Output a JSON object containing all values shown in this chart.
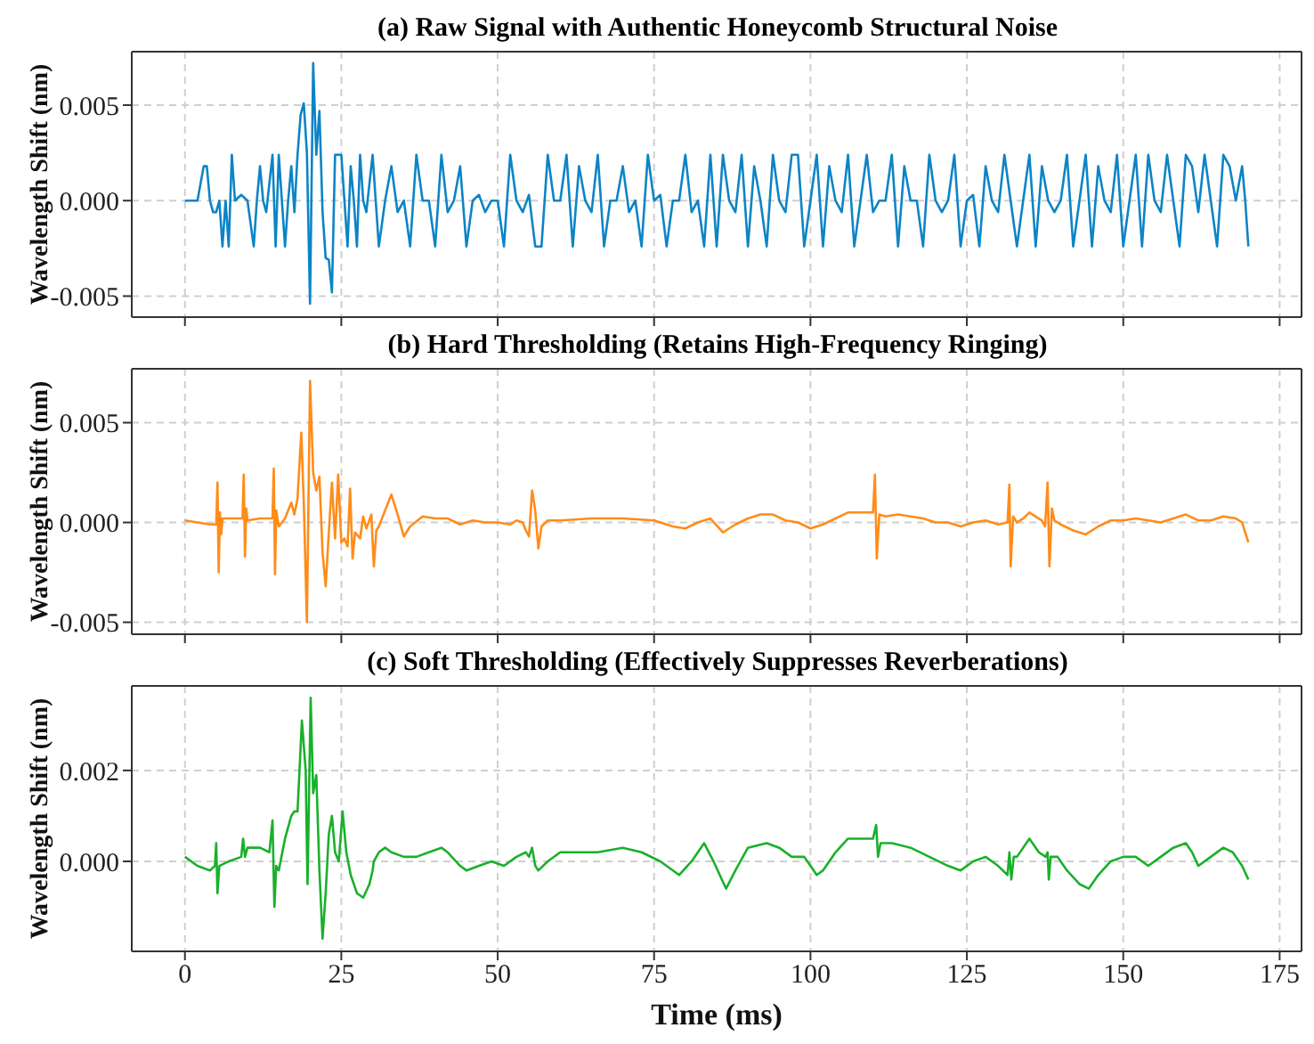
{
  "chart_data": [
    {
      "type": "line",
      "title": "(a) Raw Signal with Authentic Honeycomb Structural Noise",
      "ylabel": "Wavelength Shift (nm)",
      "color": "#0c84c6",
      "grid": true,
      "tick_labels": "y",
      "xlim": [
        -8.5,
        178.5
      ],
      "xticks": [
        0,
        25,
        50,
        75,
        100,
        125,
        150,
        175
      ],
      "ylim": [
        -0.0061,
        0.0078
      ],
      "yticks": [
        {
          "value": -0.005,
          "label": "-0.005"
        },
        {
          "value": 0,
          "label": "0.000"
        },
        {
          "value": 0.005,
          "label": "0.005"
        }
      ],
      "x": [
        0,
        2,
        3,
        3.5,
        4,
        4.5,
        5,
        5.5,
        6,
        6.5,
        7,
        7.5,
        8,
        9,
        10,
        11,
        11.5,
        12,
        12.5,
        13,
        14,
        14.5,
        15,
        15.5,
        16,
        16.5,
        17,
        17.5,
        18,
        18.5,
        19,
        19.5,
        20,
        20.5,
        21,
        21.5,
        22,
        22.5,
        23,
        23.5,
        24,
        25,
        25.5,
        26,
        26.5,
        27,
        27.5,
        28,
        28.5,
        29,
        30,
        31,
        32,
        33,
        34,
        35,
        36,
        37,
        38,
        39,
        40,
        41,
        42,
        43,
        44,
        45,
        46,
        47,
        48,
        49,
        50,
        51,
        52,
        53,
        54,
        55,
        56,
        57,
        58,
        59,
        60,
        61,
        62,
        63,
        64,
        65,
        66,
        67,
        68,
        69,
        70,
        71,
        72,
        73,
        74,
        75,
        76,
        77,
        78,
        79,
        80,
        81,
        82,
        83,
        84,
        85,
        86,
        87,
        88,
        89,
        90,
        91,
        92,
        93,
        94,
        95,
        96,
        97,
        98,
        99,
        100,
        101,
        102,
        103,
        104,
        105,
        106,
        107,
        108,
        109,
        110,
        111,
        112,
        113,
        114,
        115,
        116,
        117,
        118,
        119,
        120,
        121,
        122,
        123,
        124,
        125,
        126,
        127,
        128,
        129,
        130,
        131,
        132,
        133,
        134,
        135,
        136,
        137,
        138,
        139,
        140,
        141,
        142,
        143,
        144,
        145,
        146,
        147,
        148,
        149,
        150,
        151,
        152,
        153,
        154,
        155,
        156,
        157,
        158,
        159,
        160,
        161,
        162,
        163,
        164,
        165,
        166,
        167,
        168,
        169,
        169.5,
        170
      ],
      "values": [
        0,
        0,
        0.0018,
        0.0018,
        0,
        -0.0006,
        -0.0006,
        0,
        -0.0024,
        0,
        -0.0024,
        0.0024,
        0,
        0.0003,
        0,
        -0.0024,
        0,
        0.0018,
        0,
        -0.0006,
        0.0024,
        -0.0024,
        0.0024,
        0,
        -0.0024,
        0,
        0.0018,
        -0.0006,
        0.0024,
        0.0045,
        0.0051,
        0.0025,
        -0.0054,
        0.0072,
        0.0024,
        0.0047,
        -0.0006,
        -0.003,
        -0.0031,
        -0.0048,
        0.0024,
        0.0024,
        0,
        -0.0024,
        0.0018,
        0,
        -0.0024,
        0.0024,
        0,
        -0.0006,
        0.0024,
        -0.0024,
        0,
        0.0018,
        -0.0006,
        0,
        -0.0024,
        0.0024,
        0,
        0,
        -0.0024,
        0.0024,
        -0.0006,
        0,
        0.0018,
        -0.0024,
        0,
        0.0003,
        -0.0006,
        0,
        0,
        -0.0024,
        0.0024,
        0,
        -0.0006,
        0.0003,
        -0.0024,
        -0.0024,
        0.0024,
        0,
        0,
        0.0024,
        -0.0024,
        0.0018,
        0,
        -0.0006,
        0.0024,
        -0.0024,
        0,
        0,
        0.0018,
        -0.0006,
        0,
        -0.0024,
        0.0024,
        0,
        0.0003,
        -0.0024,
        0,
        0,
        0.0024,
        -0.0006,
        0,
        -0.0024,
        0.0024,
        -0.0024,
        0.0024,
        0,
        -0.0006,
        0.0024,
        -0.0024,
        0.0018,
        0,
        -0.0024,
        0.0024,
        0,
        -0.0006,
        0.0024,
        0.0024,
        -0.0024,
        0,
        0.0024,
        -0.0024,
        0.0018,
        0,
        -0.0006,
        0.0024,
        -0.0024,
        0,
        0.0024,
        -0.0006,
        0,
        0,
        0.0024,
        -0.0024,
        0.0018,
        0,
        0,
        -0.0024,
        0.0024,
        0,
        -0.0006,
        0,
        0.0024,
        -0.0024,
        0,
        0.0003,
        -0.0024,
        0.0018,
        0,
        -0.0006,
        0.0024,
        0,
        -0.0024,
        0,
        0.0024,
        -0.0024,
        0.0018,
        0,
        -0.0006,
        0,
        0.0024,
        -0.0024,
        0,
        0.0024,
        -0.0024,
        0.0018,
        0,
        -0.0006,
        0.0024,
        -0.0024,
        0,
        0.0024,
        -0.0024,
        0.0024,
        0,
        -0.0006,
        0.0024,
        0,
        -0.0024,
        0.0024,
        0.0018,
        -0.0006,
        0.0024,
        0,
        -0.0024,
        0.0024,
        0.0018,
        0,
        0.0018,
        0,
        -0.0024
      ]
    },
    {
      "type": "line",
      "title": "(b) Hard Thresholding (Retains High-Frequency Ringing)",
      "ylabel": "Wavelength Shift (nm)",
      "color": "#ff8c1a",
      "grid": true,
      "tick_labels": "y",
      "xlim": [
        -8.5,
        178.5
      ],
      "xticks": [
        0,
        25,
        50,
        75,
        100,
        125,
        150,
        175
      ],
      "ylim": [
        -0.0056,
        0.0077
      ],
      "yticks": [
        {
          "value": -0.005,
          "label": "-0.005"
        },
        {
          "value": 0,
          "label": "0.000"
        },
        {
          "value": 0.005,
          "label": "0.005"
        }
      ],
      "x": [
        0,
        2,
        4,
        5,
        5.2,
        5.4,
        5.6,
        5.8,
        6,
        8,
        9.2,
        9.4,
        9.6,
        9.8,
        10,
        12,
        14,
        14.2,
        14.4,
        14.6,
        15,
        16,
        17,
        17.5,
        18,
        18.6,
        19,
        19.5,
        20,
        20.5,
        21,
        21.5,
        22,
        22.5,
        23,
        23.5,
        24,
        24.5,
        25,
        25.5,
        26,
        26.4,
        26.8,
        27.2,
        28,
        28.5,
        29,
        29.8,
        30.2,
        30.6,
        31,
        32,
        33,
        34,
        35,
        36,
        38,
        40,
        42,
        44,
        46,
        48,
        50,
        52,
        53,
        54,
        54.5,
        55,
        55.5,
        56,
        56.5,
        57,
        58,
        60,
        65,
        70,
        75,
        78,
        80,
        82,
        84,
        86,
        88,
        90,
        92,
        94,
        96,
        98,
        100,
        102,
        104,
        106,
        108,
        110,
        110.3,
        110.6,
        111,
        112,
        114,
        116,
        118,
        120,
        122,
        124,
        126,
        128,
        130,
        131.5,
        131.8,
        132,
        132.4,
        133,
        134,
        135,
        136,
        137,
        137.5,
        137.9,
        138.2,
        138.6,
        139,
        140,
        142,
        144,
        146,
        148,
        150,
        152,
        154,
        156,
        158,
        160,
        162,
        164,
        166,
        168,
        169,
        170
      ],
      "values": [
        0.0001,
        0,
        -0.0001,
        -0.0001,
        0.002,
        -0.0025,
        0.0005,
        -0.0006,
        0.0002,
        0.0002,
        0.0002,
        0.0024,
        -0.0017,
        0.0007,
        0.0001,
        0.0002,
        0.0002,
        0.0027,
        -0.0026,
        0.0006,
        -0.0002,
        0.0002,
        0.001,
        0.0004,
        0.0012,
        0.0045,
        0.001,
        -0.005,
        0.0071,
        0.0025,
        0.0016,
        0.0023,
        -0.0015,
        -0.0032,
        -0.0005,
        0.002,
        -0.0008,
        0.0024,
        -0.001,
        -0.0008,
        -0.0012,
        0.0017,
        -0.0018,
        -0.0005,
        -0.0008,
        0.0003,
        -0.0003,
        0.0004,
        -0.0022,
        -0.0004,
        -0.0002,
        0.0006,
        0.0014,
        0.0004,
        -0.0007,
        -0.0002,
        0.0003,
        0.0002,
        0.0002,
        -0.0001,
        0.0001,
        0,
        0,
        -0.0001,
        0.0001,
        0,
        -0.0004,
        -0.0007,
        0.0016,
        0.0006,
        -0.0013,
        -0.0002,
        0.0001,
        0.0001,
        0.0002,
        0.0002,
        0.0001,
        -0.0002,
        -0.0003,
        0,
        0.0002,
        -0.0005,
        -0.0001,
        0.0002,
        0.0004,
        0.0004,
        0.0001,
        0,
        -0.0003,
        -0.0001,
        0.0002,
        0.0005,
        0.0005,
        0.0005,
        0.0024,
        -0.0018,
        0.0004,
        0.0003,
        0.0004,
        0.0003,
        0.0002,
        0,
        0,
        -0.0002,
        0,
        0.0001,
        -0.0001,
        0,
        0.0019,
        -0.0022,
        0.0003,
        0,
        0.0002,
        0.0005,
        0.0003,
        0.0001,
        -0.0002,
        0.002,
        -0.0022,
        0.0007,
        0.0001,
        -0.0001,
        -0.0004,
        -0.0006,
        -0.0002,
        0.0001,
        0.0001,
        0.0002,
        0.0001,
        0,
        0.0002,
        0.0004,
        0.0001,
        0.0001,
        0.0003,
        0.0002,
        0,
        -0.001
      ]
    },
    {
      "type": "line",
      "title": "(c) Soft Thresholding (Effectively Suppresses Reverberations)",
      "xlabel": "Time (ms)",
      "ylabel": "Wavelength Shift (nm)",
      "color": "#19b02b",
      "grid": true,
      "xlim": [
        -8.5,
        178.5
      ],
      "xticks": [
        0,
        25,
        50,
        75,
        100,
        125,
        150,
        175
      ],
      "ylim": [
        -0.00198,
        0.00386
      ],
      "yticks": [
        {
          "value": 0,
          "label": "0.000"
        },
        {
          "value": 0.002,
          "label": "0.002"
        }
      ],
      "x": [
        0,
        2,
        4,
        4.8,
        5,
        5.2,
        5.5,
        7,
        9,
        9.3,
        9.6,
        10,
        12,
        13.5,
        14,
        14.3,
        14.6,
        15,
        16,
        17,
        17.5,
        18,
        18.7,
        19.3,
        19.6,
        20.1,
        20.5,
        21,
        21.5,
        22,
        22.5,
        23,
        23.5,
        24,
        24.6,
        25.2,
        25.8,
        26.5,
        27.5,
        28.5,
        29.5,
        30,
        30.2,
        31,
        32,
        33,
        35,
        37,
        39,
        41,
        42,
        44,
        45,
        47,
        49,
        51,
        53,
        54.5,
        55,
        55.5,
        56,
        56.5,
        58,
        60,
        62,
        66,
        70,
        73,
        76,
        79,
        81,
        83,
        84.5,
        86.5,
        88,
        90,
        93,
        95,
        97,
        99,
        100,
        101,
        102,
        104,
        106,
        108,
        110,
        110.5,
        110.8,
        111.2,
        113,
        116,
        119,
        122,
        124,
        126,
        128,
        130,
        131.5,
        131.8,
        132.1,
        132.5,
        133,
        135,
        136.5,
        137.6,
        137.9,
        138.1,
        138.4,
        139.5,
        141,
        143,
        144.5,
        146,
        148,
        150,
        152,
        154,
        156,
        158,
        160,
        161,
        162,
        164,
        166,
        167.5,
        168.5,
        169,
        170
      ],
      "values": [
        0.0001,
        -0.0001,
        -0.0002,
        -0.0001,
        0.0004,
        -0.0007,
        -0.0001,
        0,
        0.0001,
        0.0005,
        0.0001,
        0.0003,
        0.0003,
        0.0002,
        0.0009,
        -0.001,
        -0.0001,
        -0.0002,
        0.0005,
        0.001,
        0.0011,
        0.0011,
        0.0031,
        0.002,
        -0.0005,
        0.0036,
        0.0015,
        0.0019,
        -0.0002,
        -0.0017,
        -0.0007,
        0.0006,
        0.001,
        0.0002,
        0,
        0.0011,
        0.0002,
        -0.0003,
        -0.0007,
        -0.0008,
        -0.0005,
        -0.0002,
        0,
        0.0002,
        0.0003,
        0.0002,
        0.0001,
        0.0001,
        0.0002,
        0.0003,
        0.0002,
        -0.0001,
        -0.0002,
        -0.0001,
        0,
        -0.0001,
        0.0001,
        0.0002,
        0.0001,
        0.0003,
        -0.0001,
        -0.0002,
        0,
        0.0002,
        0.0002,
        0.0002,
        0.0003,
        0.0002,
        0,
        -0.0003,
        0,
        0.0004,
        0,
        -0.0006,
        -0.0002,
        0.0003,
        0.0004,
        0.0003,
        0.0001,
        0.0001,
        -0.0001,
        -0.0003,
        -0.0002,
        0.0002,
        0.0005,
        0.0005,
        0.0005,
        0.0008,
        0.0001,
        0.0004,
        0.0004,
        0.0003,
        0.0001,
        -0.0001,
        -0.0002,
        0,
        0.0001,
        -0.0001,
        -0.0003,
        0.0002,
        -0.0004,
        0.0001,
        0.0001,
        0.0005,
        0.0002,
        0.0001,
        0.0002,
        -0.0004,
        0.0001,
        0.0001,
        -0.0002,
        -0.0005,
        -0.0006,
        -0.0003,
        0,
        0.0001,
        0.0001,
        -0.0001,
        0.0001,
        0.0003,
        0.0004,
        0.0002,
        -0.0001,
        0.0001,
        0.0003,
        0.0002,
        0,
        -0.0001,
        -0.0004
      ]
    }
  ]
}
